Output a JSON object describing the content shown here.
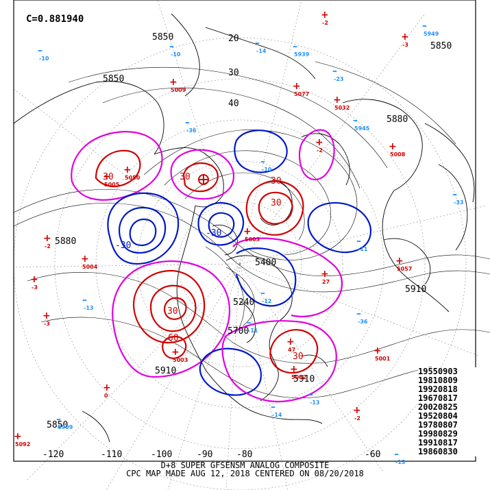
{
  "map": {
    "correlation": "C=0.881940",
    "footer_line1": "D+8 SUPER GFSENSM ANALOG COMPOSITE",
    "footer_line2": "CPC MAP MADE AUG 12, 2018 CENTERED ON 08/20/2018",
    "analog_dates": [
      "19550903",
      "19810809",
      "19920818",
      "19670817",
      "20020825",
      "19520804",
      "19780807",
      "19980829",
      "19910817",
      "19860830"
    ],
    "longitude_labels": [
      "-120",
      "-110",
      "-100",
      "-90",
      "-80",
      "-60"
    ],
    "latitude_labels": [
      "20",
      "30",
      "40"
    ],
    "height_labels": [
      "5850",
      "5850",
      "5880",
      "5880",
      "5910",
      "5910",
      "5850",
      "5400",
      "5240",
      "5700",
      "5910"
    ],
    "anomaly_labels": [
      "30",
      "30",
      "-30",
      "30",
      "-30",
      "30",
      "60",
      "30",
      "30"
    ],
    "colors": {
      "positive": "#d00000",
      "negative": "#0018c8",
      "zero": "#e000e0",
      "station_negative": "#2090ff"
    },
    "stations_pos": [
      "-2",
      "-3",
      "5009",
      "5077",
      "5032",
      "5008",
      "-2",
      "5005",
      "5050",
      "-2",
      "5004",
      "5057",
      "-3",
      "-3",
      "27",
      "5003",
      "5001",
      "5082",
      "47",
      "-2",
      "5092",
      "0",
      "5003"
    ],
    "stations_neg": [
      "5949",
      "-10",
      "-10",
      "5939",
      "-14",
      "-23",
      "5945",
      "-36",
      "-10",
      "-33",
      "-11",
      "-13",
      "-36",
      "-12",
      "-11",
      "-13",
      "-14",
      "-13",
      "5909"
    ]
  }
}
